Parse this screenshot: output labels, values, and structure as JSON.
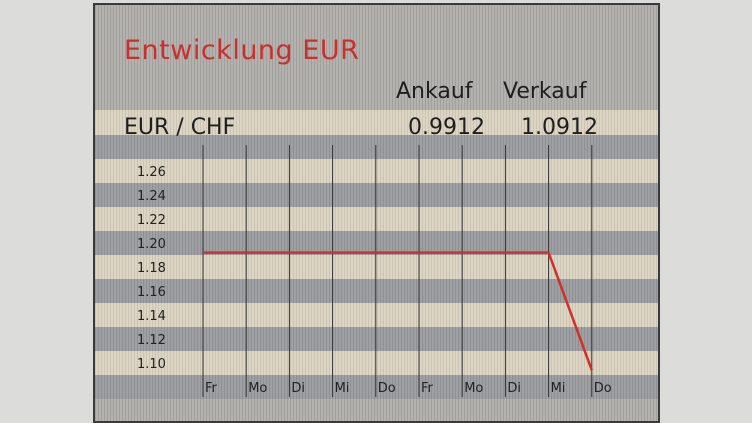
{
  "header": {
    "title": "Entwicklung EUR",
    "col_buy": "Ankauf",
    "col_sell": "Verkauf",
    "pair": "EUR / CHF",
    "buy": "0.9912",
    "sell": "1.0912"
  },
  "colors": {
    "title": "#c8302e",
    "line": "#d03028"
  },
  "chart_data": {
    "type": "line",
    "categories": [
      "Fr",
      "Mo",
      "Di",
      "Mi",
      "Do",
      "Fr",
      "Mo",
      "Di",
      "Mi",
      "Do"
    ],
    "series": [
      {
        "values": [
          1.192,
          1.192,
          1.192,
          1.192,
          1.192,
          1.192,
          1.192,
          1.192,
          1.192,
          1.094
        ]
      }
    ],
    "yticks": [
      "1.10",
      "1.12",
      "1.14",
      "1.16",
      "1.18",
      "1.20",
      "1.22",
      "1.24",
      "1.26"
    ],
    "ylim": [
      1.1,
      1.26
    ],
    "grid": "vertical lines",
    "title": "",
    "xlabel": "",
    "ylabel": ""
  }
}
